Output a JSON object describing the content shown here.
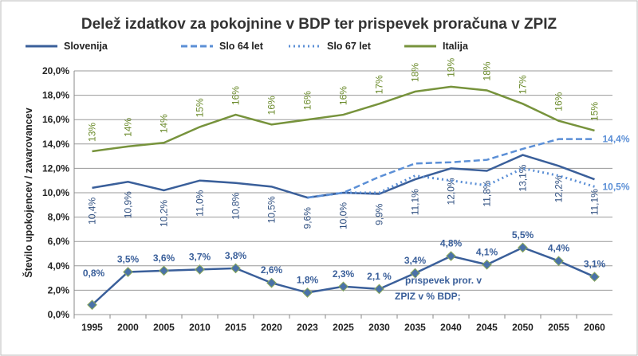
{
  "chart_data": {
    "type": "line",
    "title": "Delež izdatkov za pokojnine v BDP ter prispevek proračuna v ZPIZ",
    "ylabel": "Število upokojencev / zavarovancev",
    "xlabel": "",
    "ylim": [
      0,
      20
    ],
    "yticks": [
      "0,0%",
      "2,0%",
      "4,0%",
      "6,0%",
      "8,0%",
      "10,0%",
      "12,0%",
      "14,0%",
      "16,0%",
      "18,0%",
      "20,0%"
    ],
    "grid": true,
    "legend": "top",
    "categories": [
      "1995",
      "2000",
      "2005",
      "2010",
      "2015",
      "2020",
      "2023",
      "2025",
      "2030",
      "2035",
      "2040",
      "2045",
      "2050",
      "2055",
      "2060"
    ],
    "series": [
      {
        "name": "Slovenija",
        "color": "#3a5f9a",
        "style": "solid",
        "values": [
          10.4,
          10.9,
          10.2,
          11.0,
          10.8,
          10.5,
          9.6,
          10.0,
          9.9,
          11.1,
          12.0,
          11.8,
          13.1,
          12.2,
          11.1
        ],
        "labels": [
          "10,4%",
          "10,9%",
          "10,2%",
          "11,0%",
          "10,8%",
          "10,5%",
          "9,6%",
          "10,0%",
          "9,9%",
          "11,1%",
          "12,0%",
          "11,8%",
          "13,1%",
          "12,2%",
          "11,1%"
        ]
      },
      {
        "name": "Slo 64 let",
        "color": "#5b8fd6",
        "style": "dashed",
        "values": [
          null,
          null,
          null,
          null,
          null,
          null,
          9.6,
          10.0,
          11.3,
          12.4,
          12.5,
          12.7,
          13.6,
          14.4,
          14.4
        ],
        "end_label": "14,4%"
      },
      {
        "name": "Slo 67 let",
        "color": "#5b8fd6",
        "style": "dotted",
        "values": [
          null,
          null,
          null,
          null,
          null,
          null,
          9.6,
          10.0,
          10.0,
          11.4,
          11.0,
          10.6,
          12.0,
          11.4,
          10.5
        ],
        "end_label": "10,5%"
      },
      {
        "name": "Italija",
        "color": "#77933c",
        "style": "solid",
        "values": [
          13.4,
          13.8,
          14.1,
          15.4,
          16.4,
          15.6,
          16.0,
          16.4,
          17.3,
          18.3,
          18.7,
          18.4,
          17.3,
          15.9,
          15.1
        ],
        "labels": [
          "13%",
          "14%",
          "14%",
          "15%",
          "16%",
          "16%",
          "16%",
          "16%",
          "17%",
          "18%",
          "19%",
          "18%",
          "17%",
          "16%",
          "15%"
        ]
      },
      {
        "name": "prispevek pror. v ZPIZ v % BDP;",
        "color": "#3a5f9a",
        "style": "solid-marker",
        "values": [
          0.8,
          3.5,
          3.6,
          3.7,
          3.8,
          2.6,
          1.8,
          2.3,
          2.1,
          3.4,
          4.8,
          4.1,
          5.5,
          4.4,
          3.1
        ],
        "labels": [
          "0,8%",
          "3,5%",
          "3,6%",
          "3,7%",
          "3,8%",
          "2,6%",
          "1,8%",
          "2,3%",
          "2,1 %",
          "3,4%",
          "4,8%",
          "4,1%",
          "5,5%",
          "4,4%",
          "3,1%"
        ],
        "annotation": [
          "prispevek pror. v",
          "ZPIZ v % BDP;"
        ]
      }
    ]
  }
}
